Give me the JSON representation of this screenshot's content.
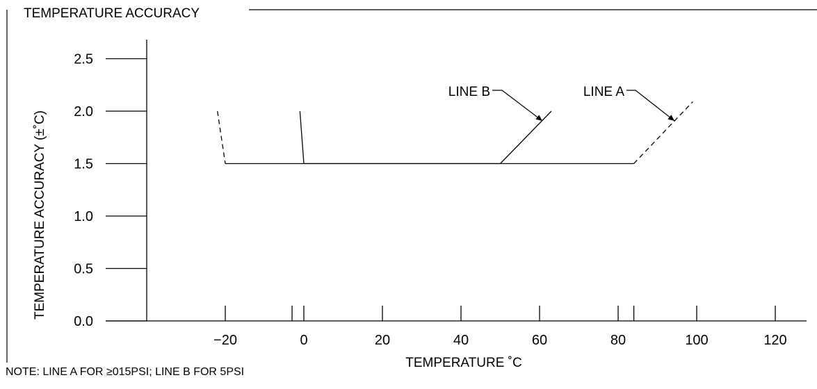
{
  "chart_data": {
    "type": "line",
    "title": "TEMPERATURE ACCURACY",
    "xlabel": "TEMPERATURE ˚C",
    "ylabel": "TEMPERATURE ACCURACY (±˚C)",
    "xlim": [
      -40,
      125
    ],
    "ylim": [
      0,
      2.6
    ],
    "x_ticks": [
      -20,
      0,
      20,
      40,
      60,
      80,
      100,
      120
    ],
    "x_ticks_unlabeled": [
      -3,
      84
    ],
    "y_ticks": [
      0.0,
      0.5,
      1.0,
      1.5,
      2.0,
      2.5
    ],
    "y_tick_labels": [
      "0.0",
      "0.5",
      "1.0",
      "1.5",
      "2.0",
      "2.5"
    ],
    "grid": false,
    "series": [
      {
        "name": "LINE A",
        "style": "dashed-ends",
        "x": [
          -22,
          -20,
          84,
          99
        ],
        "y": [
          2.0,
          1.5,
          1.5,
          2.09
        ]
      },
      {
        "name": "LINE B",
        "style": "solid",
        "x": [
          -1,
          0,
          50,
          63
        ],
        "y": [
          2.0,
          1.5,
          1.5,
          2.0
        ]
      }
    ],
    "annotations": [
      {
        "text": "LINE B",
        "series": "LINE B"
      },
      {
        "text": "LINE A",
        "series": "LINE A"
      }
    ],
    "note": "NOTE: LINE A FOR ≥015PSI; LINE B FOR 5PSI"
  }
}
